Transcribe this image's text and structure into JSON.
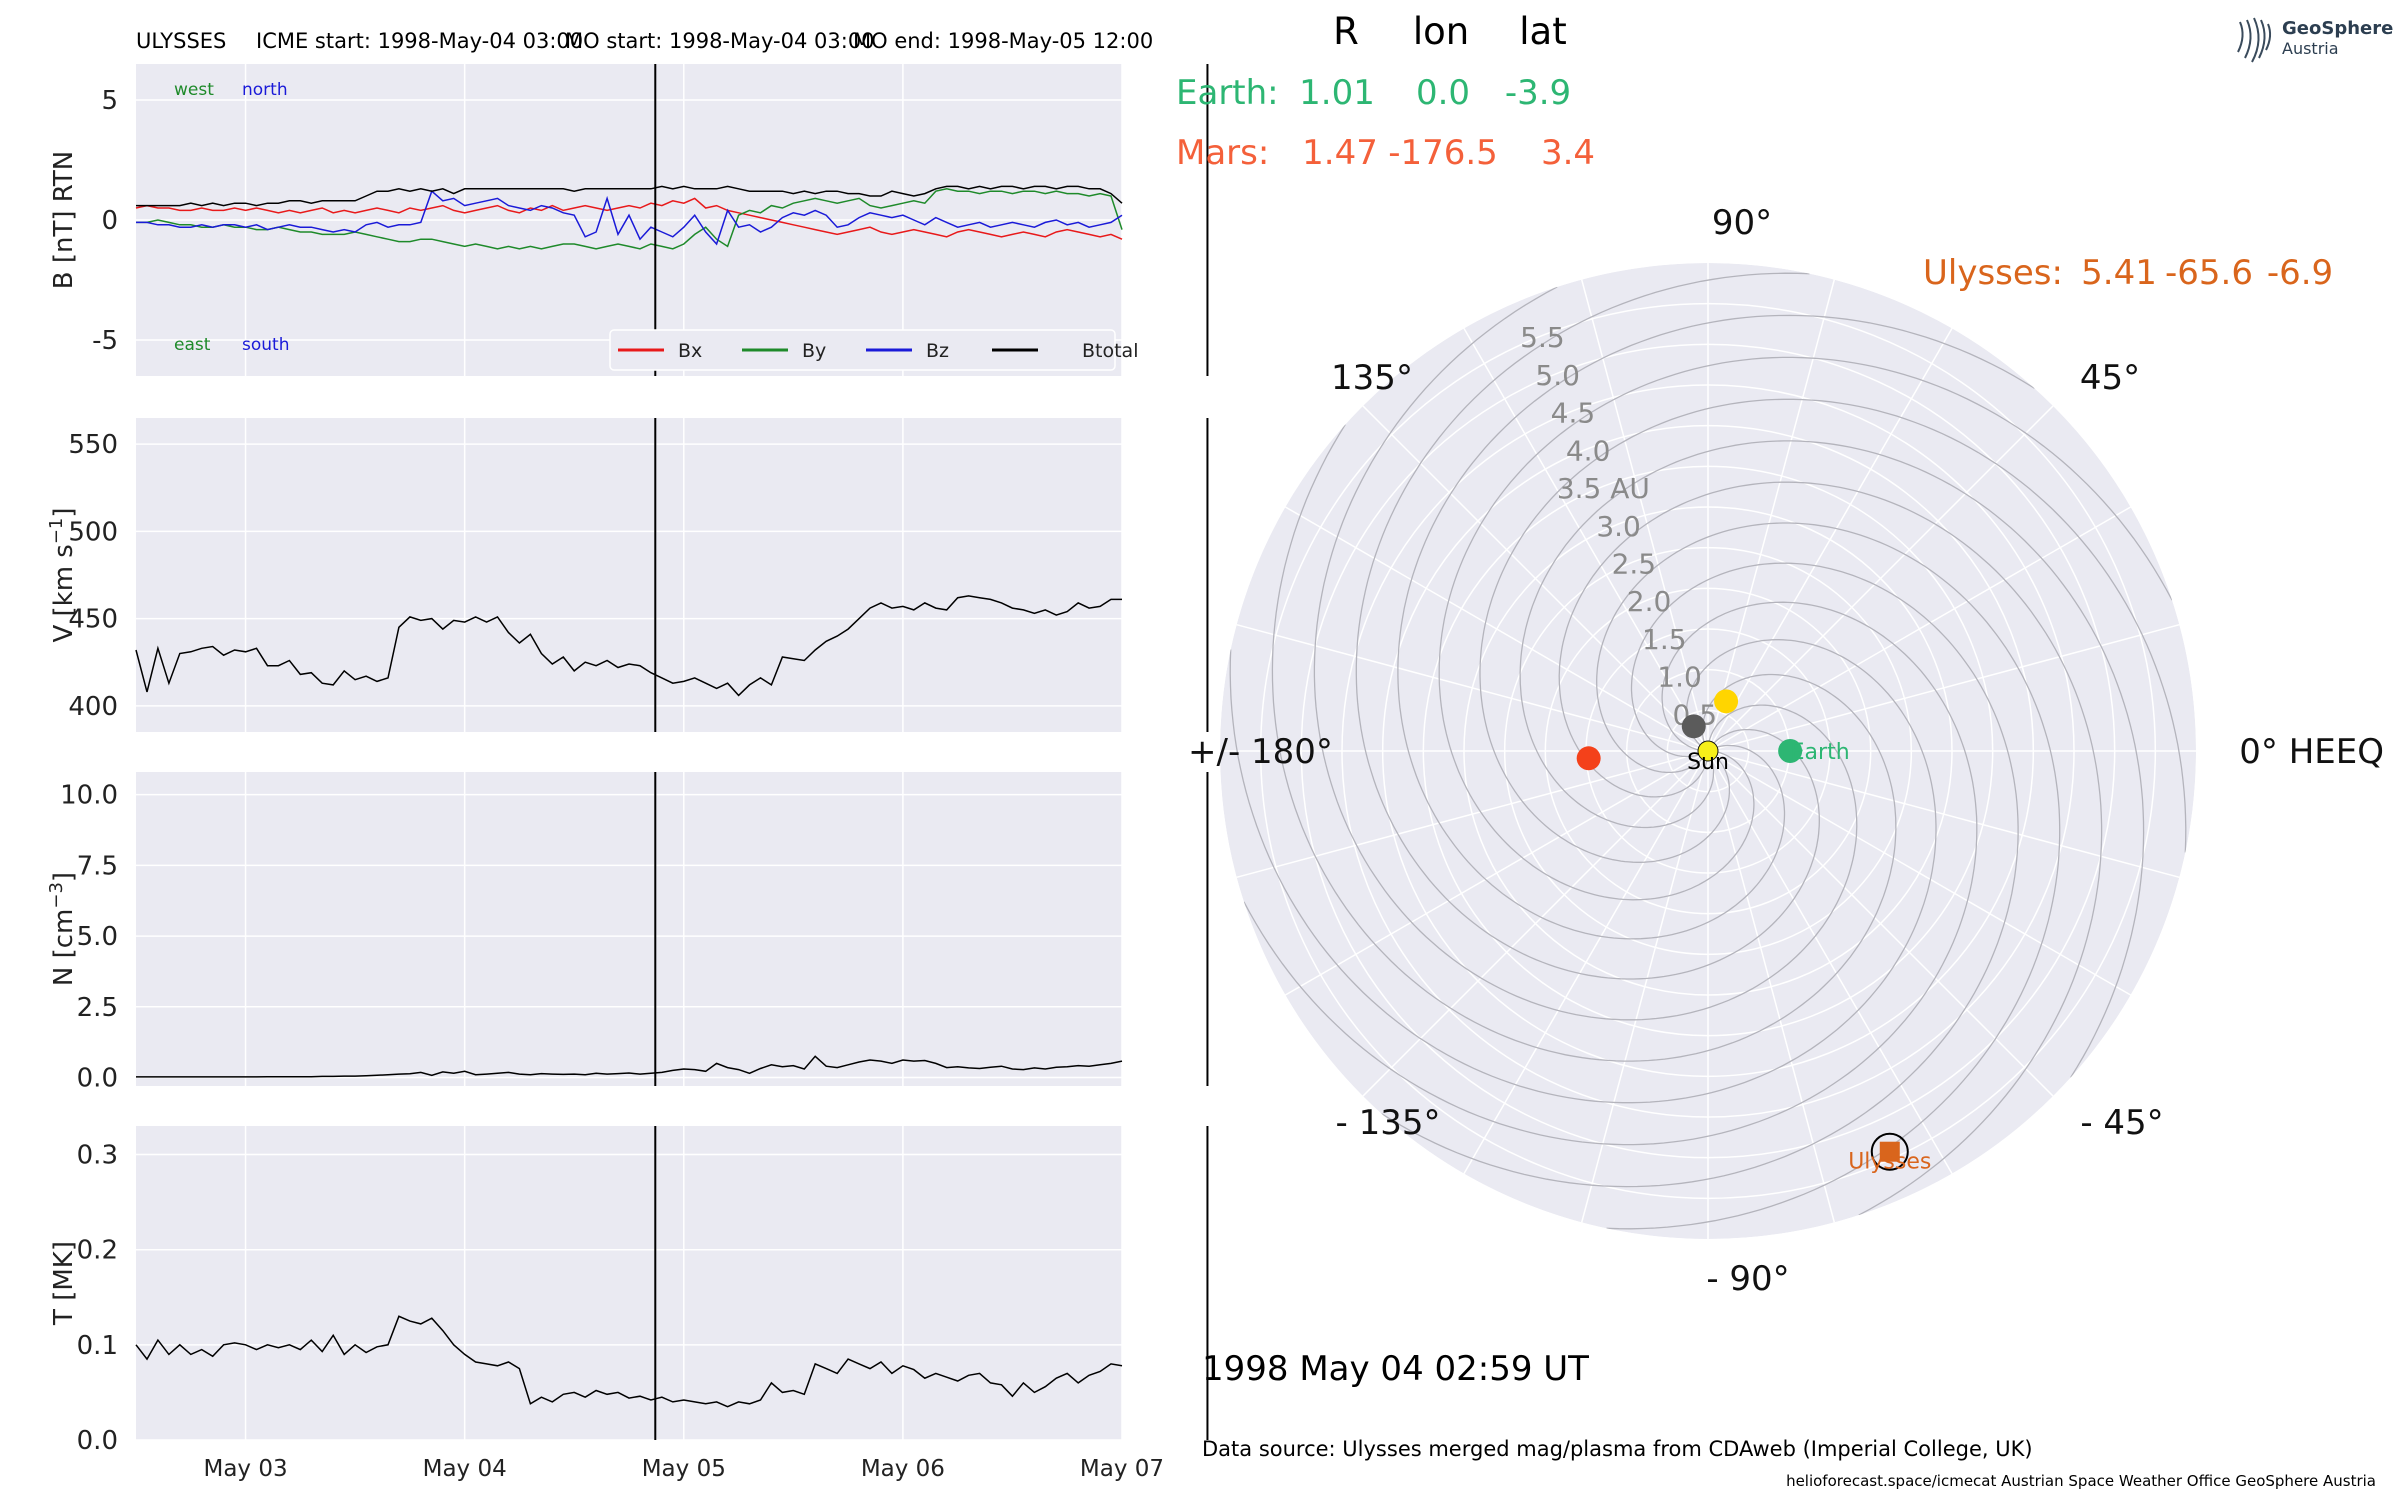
{
  "header": {
    "spacecraft": "ULYSSES",
    "icme_start": "ICME start: 1998-May-04 03:00",
    "mo_start": "MO start: 1998-May-04 03:00",
    "mo_end": "MO end: 1998-May-05 12:00"
  },
  "logo": {
    "line1": "GeoSphere",
    "line2": "Austria"
  },
  "positions": {
    "columns": [
      "R",
      "lon",
      "lat"
    ],
    "rows": [
      {
        "label": "Earth:",
        "R": "1.01",
        "lon": "0.0",
        "lat": "-3.9",
        "color": "#2db673"
      },
      {
        "label": "Mars:",
        "R": "1.47",
        "lon": "-176.5",
        "lat": "3.4",
        "color": "#f4603a"
      },
      {
        "label": "Ulysses:",
        "R": "5.41",
        "lon": "-65.6",
        "lat": "-6.9",
        "color": "#d9651c"
      }
    ]
  },
  "timestamp": "1998 May 04  02:59 UT",
  "data_source": "Data source: Ulysses merged mag/plasma from CDAweb (Imperial College, UK)",
  "credits": "helioforecast.space/icmecat   Austrian Space Weather Office   GeoSphere Austria",
  "colors": {
    "bx": "#e8191a",
    "by": "#1e8a2a",
    "bz": "#1a1ad8",
    "btotal": "#000000",
    "panel_bg": "#eaeaf2",
    "grid": "#ffffff"
  },
  "chart_data": [
    {
      "type": "line",
      "ylabel": "B [nT] RTN",
      "ylim": [
        -6.5,
        6.5
      ],
      "yticks": [
        -5,
        0,
        5
      ],
      "annotations": {
        "top_left": "west",
        "top_right": "north",
        "bottom_left": "east",
        "bottom_right": "south"
      },
      "legend": [
        "Bx",
        "By",
        "Bz",
        "Btotal"
      ],
      "legend_position": "lower-right",
      "series": [
        {
          "name": "Bx",
          "values": [
            0.5,
            0.6,
            0.5,
            0.5,
            0.4,
            0.4,
            0.5,
            0.4,
            0.4,
            0.5,
            0.4,
            0.5,
            0.4,
            0.3,
            0.4,
            0.3,
            0.4,
            0.5,
            0.3,
            0.4,
            0.3,
            0.4,
            0.5,
            0.4,
            0.3,
            0.5,
            0.4,
            0.5,
            0.6,
            0.4,
            0.3,
            0.4,
            0.5,
            0.6,
            0.4,
            0.3,
            0.5,
            0.4,
            0.6,
            0.4,
            0.5,
            0.6,
            0.5,
            0.4,
            0.5,
            0.6,
            0.5,
            0.7,
            0.6,
            0.8,
            0.7,
            0.9,
            0.5,
            0.6,
            0.4,
            0.3,
            0.2,
            0.1,
            0.0,
            -0.1,
            -0.2,
            -0.3,
            -0.4,
            -0.5,
            -0.6,
            -0.5,
            -0.4,
            -0.3,
            -0.5,
            -0.6,
            -0.5,
            -0.4,
            -0.5,
            -0.6,
            -0.7,
            -0.5,
            -0.4,
            -0.5,
            -0.6,
            -0.7,
            -0.6,
            -0.5,
            -0.6,
            -0.7,
            -0.5,
            -0.4,
            -0.5,
            -0.6,
            -0.7,
            -0.6,
            -0.8
          ]
        },
        {
          "name": "By",
          "values": [
            -0.1,
            -0.1,
            0.0,
            -0.1,
            -0.2,
            -0.2,
            -0.3,
            -0.3,
            -0.2,
            -0.3,
            -0.3,
            -0.4,
            -0.4,
            -0.3,
            -0.4,
            -0.5,
            -0.5,
            -0.6,
            -0.6,
            -0.6,
            -0.5,
            -0.6,
            -0.7,
            -0.8,
            -0.9,
            -0.9,
            -0.8,
            -0.8,
            -0.9,
            -1.0,
            -1.1,
            -1.0,
            -1.1,
            -1.2,
            -1.1,
            -1.2,
            -1.1,
            -1.2,
            -1.1,
            -1.0,
            -1.0,
            -1.1,
            -1.2,
            -1.1,
            -1.0,
            -1.1,
            -1.2,
            -1.0,
            -1.1,
            -1.2,
            -1.0,
            -0.6,
            -0.3,
            -0.8,
            -1.1,
            0.2,
            0.4,
            0.3,
            0.6,
            0.5,
            0.7,
            0.8,
            0.9,
            0.8,
            0.7,
            0.8,
            0.9,
            0.6,
            0.5,
            0.6,
            0.7,
            0.8,
            0.7,
            1.2,
            1.3,
            1.2,
            1.2,
            1.1,
            1.2,
            1.2,
            1.1,
            1.2,
            1.2,
            1.1,
            1.2,
            1.1,
            1.1,
            1.0,
            1.1,
            1.0,
            -0.4
          ]
        },
        {
          "name": "Bz",
          "values": [
            -0.1,
            -0.1,
            -0.2,
            -0.2,
            -0.3,
            -0.3,
            -0.2,
            -0.3,
            -0.2,
            -0.2,
            -0.3,
            -0.2,
            -0.4,
            -0.3,
            -0.2,
            -0.3,
            -0.3,
            -0.4,
            -0.5,
            -0.4,
            -0.5,
            -0.2,
            -0.1,
            -0.3,
            -0.2,
            -0.2,
            -0.1,
            1.2,
            0.8,
            0.9,
            0.6,
            0.7,
            0.8,
            0.9,
            0.6,
            0.5,
            0.4,
            0.6,
            0.5,
            0.3,
            0.2,
            -0.7,
            -0.5,
            0.9,
            -0.6,
            0.2,
            -0.8,
            -0.3,
            -0.5,
            -0.7,
            -0.3,
            0.2,
            -0.5,
            -1.0,
            0.4,
            -0.3,
            -0.2,
            -0.5,
            -0.3,
            0.1,
            0.3,
            0.2,
            0.4,
            0.2,
            -0.3,
            -0.2,
            0.1,
            0.3,
            0.2,
            0.1,
            0.2,
            0.0,
            -0.2,
            0.1,
            -0.1,
            -0.3,
            -0.2,
            -0.1,
            -0.3,
            -0.2,
            -0.1,
            -0.2,
            -0.3,
            -0.1,
            0.0,
            -0.2,
            -0.1,
            -0.3,
            -0.2,
            -0.1,
            0.2
          ]
        },
        {
          "name": "Btotal",
          "values": [
            0.6,
            0.6,
            0.6,
            0.6,
            0.6,
            0.7,
            0.6,
            0.7,
            0.6,
            0.7,
            0.7,
            0.6,
            0.7,
            0.7,
            0.8,
            0.8,
            0.7,
            0.8,
            0.8,
            0.8,
            0.8,
            1.0,
            1.2,
            1.2,
            1.3,
            1.2,
            1.3,
            1.2,
            1.3,
            1.1,
            1.3,
            1.3,
            1.3,
            1.3,
            1.3,
            1.3,
            1.3,
            1.3,
            1.3,
            1.3,
            1.2,
            1.3,
            1.3,
            1.3,
            1.3,
            1.3,
            1.3,
            1.3,
            1.4,
            1.3,
            1.4,
            1.3,
            1.3,
            1.3,
            1.4,
            1.3,
            1.2,
            1.2,
            1.2,
            1.2,
            1.1,
            1.2,
            1.1,
            1.2,
            1.2,
            1.1,
            1.1,
            1.0,
            1.0,
            1.2,
            1.1,
            1.0,
            1.1,
            1.3,
            1.4,
            1.4,
            1.3,
            1.4,
            1.3,
            1.4,
            1.4,
            1.3,
            1.4,
            1.4,
            1.3,
            1.4,
            1.4,
            1.3,
            1.3,
            1.1,
            0.7
          ]
        }
      ]
    },
    {
      "type": "line",
      "ylabel_main": "V [km s",
      "ylabel_exp": "−1",
      "ylabel_end": "]",
      "ylim": [
        385,
        565
      ],
      "yticks": [
        400,
        450,
        500,
        550
      ],
      "series": [
        {
          "name": "V",
          "values": [
            432,
            408,
            433,
            413,
            430,
            431,
            433,
            434,
            429,
            432,
            431,
            433,
            423,
            423,
            426,
            418,
            419,
            413,
            412,
            420,
            415,
            417,
            414,
            416,
            445,
            451,
            449,
            450,
            444,
            449,
            448,
            451,
            448,
            451,
            442,
            436,
            441,
            430,
            424,
            428,
            420,
            425,
            423,
            426,
            422,
            424,
            423,
            419,
            416,
            413,
            414,
            416,
            413,
            410,
            413,
            406,
            412,
            416,
            412,
            428,
            427,
            426,
            432,
            437,
            440,
            444,
            450,
            456,
            459,
            456,
            457,
            455,
            459,
            456,
            455,
            462,
            463,
            462,
            461,
            459,
            456,
            455,
            453,
            455,
            452,
            454,
            459,
            456,
            457,
            461,
            461
          ]
        }
      ]
    },
    {
      "type": "line",
      "ylabel_main": "N [cm",
      "ylabel_exp": "−3",
      "ylabel_end": "]",
      "ylim": [
        -0.3,
        10.8
      ],
      "yticks": [
        0.0,
        2.5,
        5.0,
        7.5,
        10.0
      ],
      "yticklabels": [
        "0.0",
        "2.5",
        "5.0",
        "7.5",
        "10.0"
      ],
      "series": [
        {
          "name": "N",
          "values": [
            0.02,
            0.02,
            0.02,
            0.02,
            0.02,
            0.02,
            0.02,
            0.02,
            0.02,
            0.02,
            0.02,
            0.02,
            0.03,
            0.03,
            0.03,
            0.03,
            0.03,
            0.04,
            0.04,
            0.05,
            0.05,
            0.06,
            0.08,
            0.1,
            0.12,
            0.13,
            0.18,
            0.08,
            0.2,
            0.15,
            0.22,
            0.1,
            0.12,
            0.15,
            0.18,
            0.12,
            0.1,
            0.14,
            0.12,
            0.11,
            0.12,
            0.1,
            0.15,
            0.12,
            0.14,
            0.16,
            0.12,
            0.15,
            0.18,
            0.25,
            0.3,
            0.28,
            0.22,
            0.5,
            0.35,
            0.28,
            0.15,
            0.32,
            0.45,
            0.38,
            0.42,
            0.3,
            0.75,
            0.4,
            0.35,
            0.45,
            0.55,
            0.62,
            0.58,
            0.5,
            0.62,
            0.58,
            0.6,
            0.5,
            0.35,
            0.38,
            0.34,
            0.32,
            0.36,
            0.4,
            0.3,
            0.28,
            0.34,
            0.3,
            0.36,
            0.38,
            0.42,
            0.4,
            0.45,
            0.5,
            0.58
          ]
        }
      ]
    },
    {
      "type": "line",
      "ylabel": "T [MK]",
      "ylim": [
        0.0,
        0.33
      ],
      "yticks": [
        0.0,
        0.1,
        0.2,
        0.3
      ],
      "yticklabels": [
        "0.0",
        "0.1",
        "0.2",
        "0.3"
      ],
      "x_tick_labels": [
        "May 03",
        "May 04",
        "May 05",
        "May 06",
        "May 07"
      ],
      "series": [
        {
          "name": "T",
          "values": [
            0.1,
            0.085,
            0.105,
            0.09,
            0.1,
            0.09,
            0.095,
            0.088,
            0.1,
            0.102,
            0.1,
            0.095,
            0.1,
            0.097,
            0.1,
            0.095,
            0.105,
            0.093,
            0.11,
            0.09,
            0.1,
            0.092,
            0.098,
            0.1,
            0.13,
            0.125,
            0.122,
            0.128,
            0.115,
            0.1,
            0.09,
            0.082,
            0.08,
            0.078,
            0.082,
            0.075,
            0.038,
            0.045,
            0.04,
            0.048,
            0.05,
            0.045,
            0.052,
            0.048,
            0.05,
            0.044,
            0.046,
            0.042,
            0.045,
            0.04,
            0.042,
            0.04,
            0.038,
            0.04,
            0.035,
            0.04,
            0.038,
            0.042,
            0.06,
            0.05,
            0.052,
            0.048,
            0.08,
            0.075,
            0.07,
            0.085,
            0.08,
            0.075,
            0.082,
            0.07,
            0.078,
            0.074,
            0.065,
            0.07,
            0.066,
            0.062,
            0.068,
            0.07,
            0.06,
            0.058,
            0.046,
            0.06,
            0.05,
            0.056,
            0.065,
            0.07,
            0.06,
            0.068,
            0.072,
            0.08,
            0.078
          ]
        }
      ]
    },
    {
      "type": "scatter",
      "polar": true,
      "radial_labels": [
        "0.5",
        "1.0",
        "1.5",
        "2.0",
        "2.5",
        "3.0",
        "3.5 AU",
        "4.0",
        "4.5",
        "5.0",
        "5.5"
      ],
      "radial_values": [
        0.5,
        1.0,
        1.5,
        2.0,
        2.5,
        3.0,
        3.5,
        4.0,
        4.5,
        5.0,
        5.5
      ],
      "r_max": 6.0,
      "angle_labels": [
        "0° HEEQ",
        "45°",
        "90°",
        "135°",
        "+/- 180°",
        "- 135°",
        "- 90°",
        "- 45°"
      ],
      "angles": [
        0,
        45,
        90,
        135,
        180,
        225,
        270,
        315
      ],
      "bodies": [
        {
          "name": "Sun",
          "r": 0.0,
          "lon": 0,
          "color": "#f7ef1a",
          "marker": "circle"
        },
        {
          "name": "Earth",
          "r": 1.01,
          "lon": 0.0,
          "color": "#2db673",
          "marker": "circle"
        },
        {
          "name": "Mars",
          "r": 1.47,
          "lon": -176.5,
          "color": "#f4411a",
          "marker": "circle"
        },
        {
          "name": "Ulysses",
          "r": 5.41,
          "lon": -65.6,
          "color": "#d9651c",
          "marker": "square"
        },
        {
          "name": "",
          "r": 0.65,
          "lon": 70,
          "color": "#ffd500",
          "marker": "circle"
        },
        {
          "name": "",
          "r": 0.35,
          "lon": 120,
          "color": "#5b5b5b",
          "marker": "circle"
        }
      ]
    }
  ]
}
